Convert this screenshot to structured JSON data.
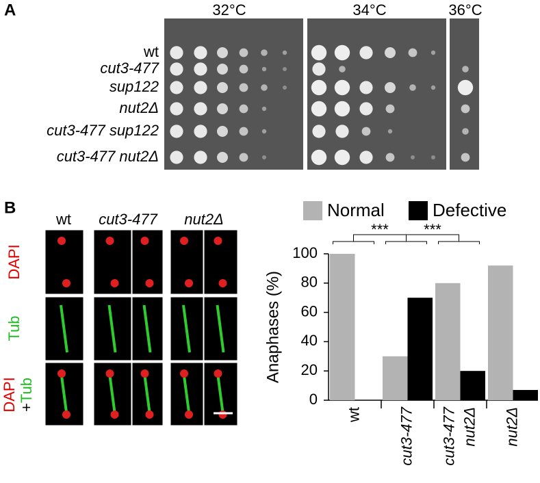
{
  "panel_a": {
    "label": "A",
    "temperatures": [
      "32°C",
      "34°C",
      "36°C"
    ],
    "strains": [
      "wt",
      "cut3-477",
      "sup122",
      "nut2Δ",
      "cut3-477 sup122",
      "cut3-477 nut2Δ"
    ]
  },
  "panel_b": {
    "label": "B",
    "columns": [
      "wt",
      "cut3-477",
      "nut2Δ"
    ],
    "rows": [
      "DAPI",
      "Tub"
    ],
    "merge_label": {
      "first": "DAPI",
      "plus": "+",
      "second": "Tub"
    }
  },
  "chart_data": {
    "type": "bar",
    "ylabel": "Anaphases (%)",
    "categories": [
      [
        "wt"
      ],
      [
        "cut3-477"
      ],
      [
        "cut3-477",
        "nut2Δ"
      ],
      [
        "nut2Δ"
      ]
    ],
    "series": [
      {
        "name": "Normal",
        "color": "#b3b3b3",
        "values": [
          100,
          30,
          80,
          92
        ]
      },
      {
        "name": "Defective",
        "color": "#000000",
        "values": [
          0,
          70,
          20,
          7
        ]
      }
    ],
    "ylim": [
      0,
      100
    ],
    "yticks": [
      0,
      20,
      40,
      60,
      80,
      100
    ],
    "legend": "top",
    "annotations": [
      "***",
      "***"
    ]
  }
}
